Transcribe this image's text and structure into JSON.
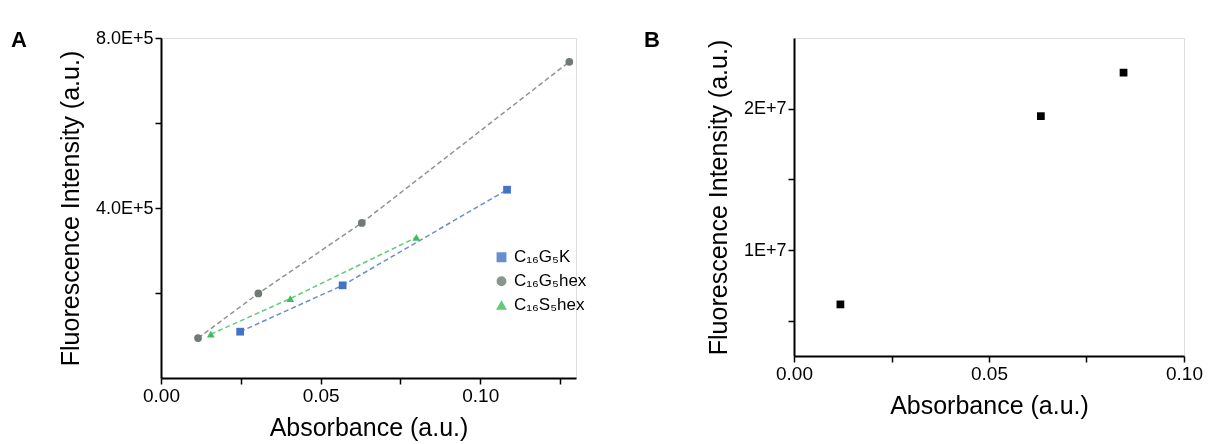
{
  "chart_data": [
    {
      "type": "line",
      "xlabel": "Absorbance (a.u.)",
      "ylabel": "Fluorescence Intensity (a.u.)",
      "annotations": [
        "A"
      ],
      "legend": "right",
      "line_style": "dashed",
      "grid": false,
      "xlim": [
        0,
        0.13
      ],
      "xticks": [
        {
          "value": 0,
          "label": "0.00"
        },
        {
          "value": 0.025,
          "label": null
        },
        {
          "value": 0.05,
          "label": "0.05"
        },
        {
          "value": 0.075,
          "label": null
        },
        {
          "value": 0.1,
          "label": "0.10"
        },
        {
          "value": 0.125,
          "label": null
        }
      ],
      "ylim": [
        0,
        800000
      ],
      "yticks": [
        {
          "value": 200000,
          "label": null
        },
        {
          "value": 400000,
          "label": "4.0E+5"
        },
        {
          "value": 600000,
          "label": null
        },
        {
          "value": 800000,
          "label": "8.0E+5"
        }
      ],
      "series": [
        {
          "name": "C₁₆G₅K",
          "color": "#4472c4",
          "marker": "square",
          "x": [
            0.0248,
            0.0569,
            0.1084
          ],
          "values": [
            109000,
            218000,
            443000
          ]
        },
        {
          "name": "C₁₆G₅hex",
          "color": "#6f7b73",
          "marker": "circle",
          "x": [
            0.0116,
            0.0305,
            0.0629,
            0.1279
          ],
          "values": [
            94000,
            199000,
            365000,
            744000
          ]
        },
        {
          "name": "C₁₆S₅hex",
          "color": "#3cbf5a",
          "marker": "triangle",
          "x": [
            0.0156,
            0.0405,
            0.08
          ],
          "values": [
            103000,
            187000,
            331000
          ]
        }
      ]
    },
    {
      "type": "scatter",
      "xlabel": "Absorbance (a.u.)",
      "ylabel": "Fluorescence Intensity (a.u.)",
      "annotations": [
        "B"
      ],
      "marker": "square",
      "grid": false,
      "xlim": [
        0,
        0.1
      ],
      "xticks": [
        {
          "value": 0,
          "label": "0.00"
        },
        {
          "value": 0.025,
          "label": null
        },
        {
          "value": 0.05,
          "label": "0.05"
        },
        {
          "value": 0.075,
          "label": null
        },
        {
          "value": 0.1,
          "label": "0.10"
        }
      ],
      "ylim": [
        2500000,
        25000000
      ],
      "yticks": [
        {
          "value": 5000000,
          "label": null
        },
        {
          "value": 10000000,
          "label": "1E+7"
        },
        {
          "value": 15000000,
          "label": null
        },
        {
          "value": 20000000,
          "label": "2E+7"
        }
      ],
      "series": [
        {
          "color": "#000000",
          "x": [
            0.0119,
            0.0633,
            0.0845
          ],
          "values": [
            6150000,
            19470000,
            22550000
          ]
        }
      ]
    }
  ]
}
